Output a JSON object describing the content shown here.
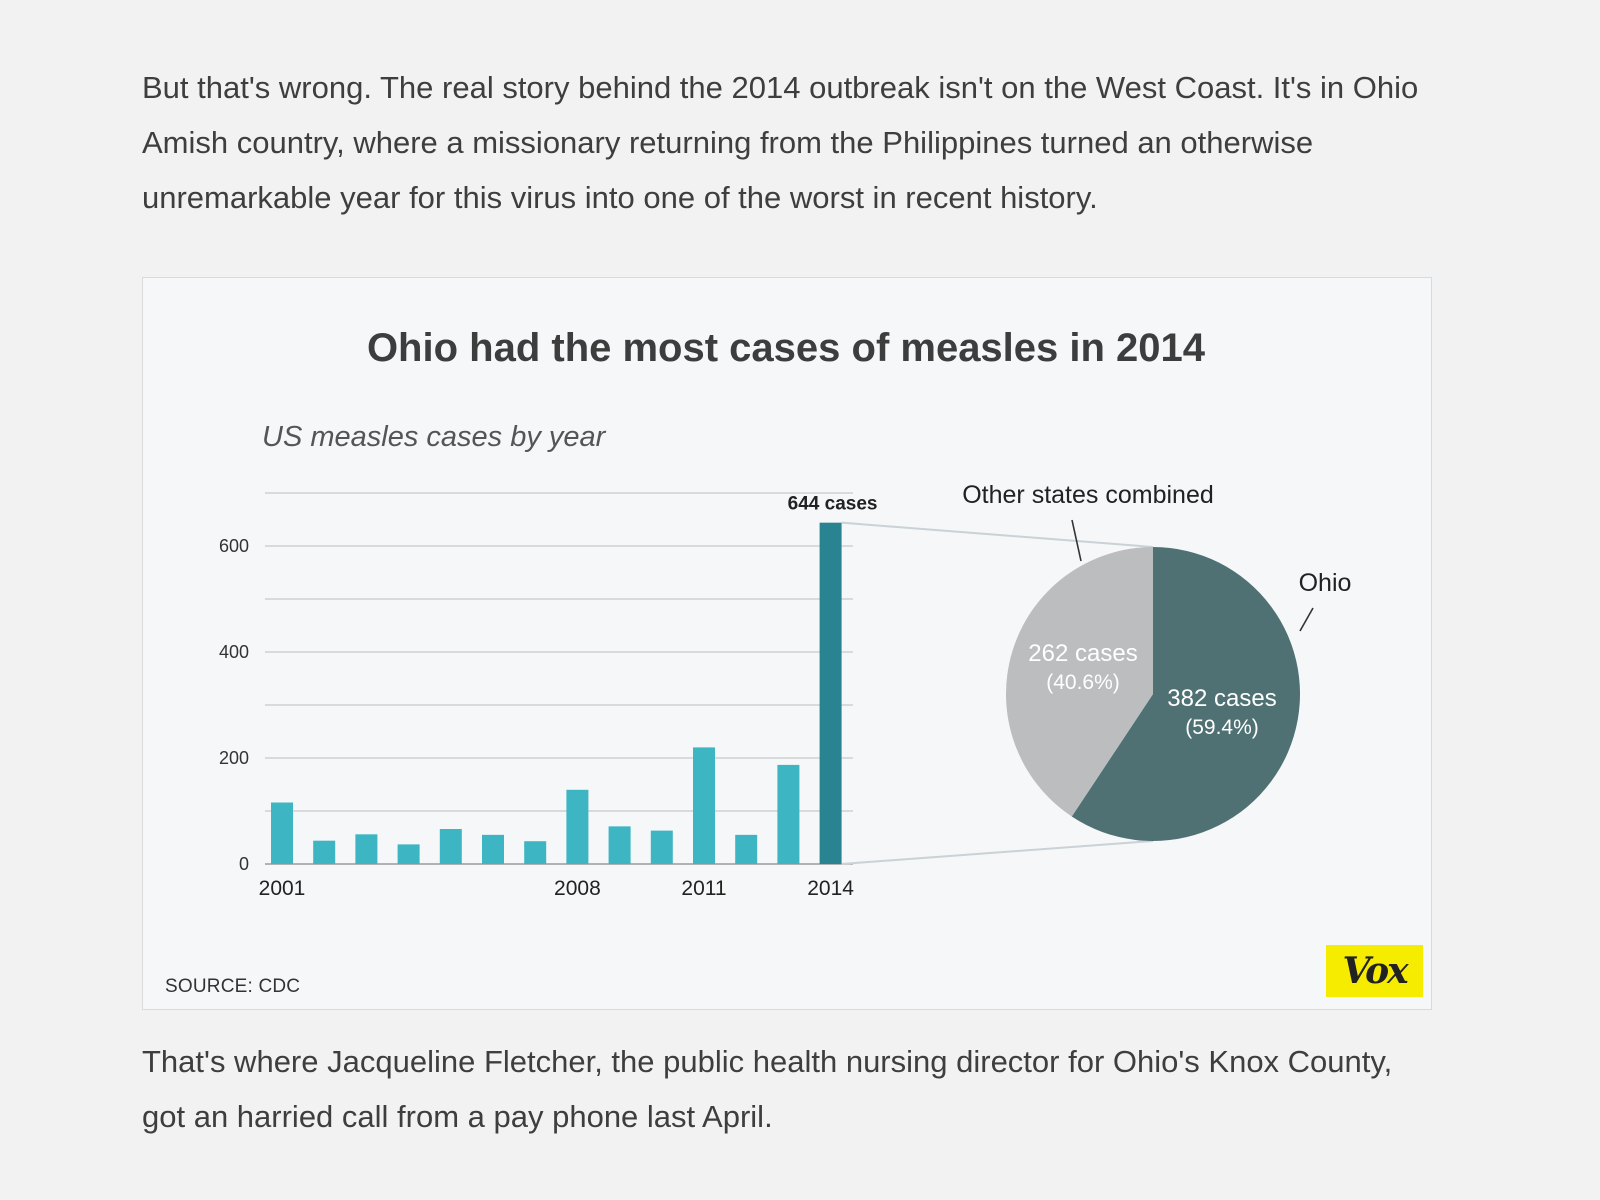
{
  "article": {
    "paragraph_1": "But that's wrong. The real story behind the 2014 outbreak isn't on the West Coast. It's in Ohio Amish country, where a missionary returning from the Philippines turned an otherwise unremarkable year for this virus into one of the worst in recent history.",
    "paragraph_2": "That's where Jacqueline Fletcher, the public health nursing director for Ohio's Knox County, got an harried call from a pay phone last April."
  },
  "figure": {
    "source": "SOURCE: CDC",
    "logo_text": "Vox"
  },
  "colors": {
    "bar": "#3db5c3",
    "bar_highlight": "#2a8390",
    "pie_ohio": "#4f7173",
    "pie_other": "#bcbdbf",
    "grid": "#c8c9ca"
  },
  "chart_data": [
    {
      "type": "bar",
      "title": "Ohio had the most cases of measles in 2014",
      "subtitle": "US measles cases by year",
      "categories": [
        "2001",
        "2002",
        "2003",
        "2004",
        "2005",
        "2006",
        "2007",
        "2008",
        "2009",
        "2010",
        "2011",
        "2012",
        "2013",
        "2014"
      ],
      "x_tick_labels": [
        "2001",
        "2008",
        "2011",
        "2014"
      ],
      "values": [
        116,
        44,
        56,
        37,
        66,
        55,
        43,
        140,
        71,
        63,
        220,
        55,
        187,
        644
      ],
      "highlight": "2014",
      "annotation": "644 cases",
      "ylim": [
        0,
        700
      ],
      "y_ticks": [
        0,
        200,
        400,
        600
      ],
      "y_gridlines": [
        0,
        100,
        200,
        300,
        400,
        500,
        600,
        700
      ],
      "grid": true
    },
    {
      "type": "pie",
      "slices": [
        {
          "label": "Ohio",
          "value": 382,
          "value_label": "382 cases",
          "pct_label": "(59.4%)"
        },
        {
          "label": "Other states combined",
          "value": 262,
          "value_label": "262 cases",
          "pct_label": "(40.6%)"
        }
      ]
    }
  ]
}
